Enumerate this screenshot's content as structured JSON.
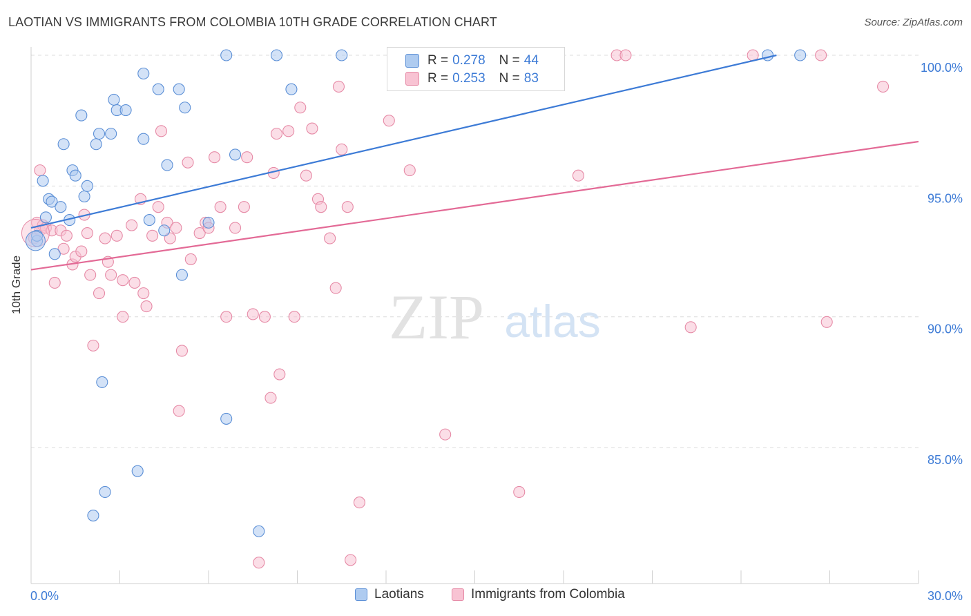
{
  "header": {
    "title": "LAOTIAN VS IMMIGRANTS FROM COLOMBIA 10TH GRADE CORRELATION CHART",
    "source": "Source: ZipAtlas.com"
  },
  "watermark": {
    "zip": "ZIP",
    "atlas": "atlas"
  },
  "legend": {
    "r_label": "R =",
    "n_label": "N =",
    "rows": [
      {
        "r": "0.278",
        "n": "44",
        "fill": "#aecbf0",
        "stroke": "#5b8fd6"
      },
      {
        "r": "0.253",
        "n": "83",
        "fill": "#f8c3d3",
        "stroke": "#e68aa6"
      }
    ]
  },
  "bottom_legend": [
    {
      "label": "Laotians",
      "fill": "#aecbf0",
      "stroke": "#5b8fd6"
    },
    {
      "label": "Immigrants from Colombia",
      "fill": "#f8c3d3",
      "stroke": "#e68aa6"
    }
  ],
  "chart_data": {
    "type": "scatter",
    "title": "LAOTIAN VS IMMIGRANTS FROM COLOMBIA 10TH GRADE CORRELATION CHART",
    "xlabel": "",
    "ylabel": "10th Grade",
    "xlim": [
      0,
      30
    ],
    "ylim": [
      80.2,
      100.4
    ],
    "x_tick_labels": [
      "0.0%",
      "30.0%"
    ],
    "y_ticks": [
      85,
      90,
      95,
      100
    ],
    "y_tick_labels": [
      "85.0%",
      "90.0%",
      "95.0%",
      "100.0%"
    ],
    "grid": "horizontal dashed",
    "legend_placement": "top-center",
    "accent_colors": {
      "blue": "#3d7bd6",
      "pink": "#e36a96",
      "axis_text": "#3d7bd6"
    },
    "series": [
      {
        "name": "Laotians",
        "color": "#5b8fd6",
        "fill": "#aecbf0",
        "r": 0.278,
        "n": 44,
        "trend": {
          "x": [
            0,
            25.2
          ],
          "y": [
            93.4,
            100.0
          ]
        },
        "points": [
          [
            0.2,
            92.9
          ],
          [
            0.2,
            93.1
          ],
          [
            0.4,
            95.2
          ],
          [
            0.5,
            93.8
          ],
          [
            0.6,
            94.5
          ],
          [
            0.7,
            94.4
          ],
          [
            0.8,
            92.4
          ],
          [
            1.0,
            94.2
          ],
          [
            1.1,
            96.6
          ],
          [
            1.3,
            93.7
          ],
          [
            1.4,
            95.6
          ],
          [
            1.5,
            95.4
          ],
          [
            1.7,
            97.7
          ],
          [
            1.8,
            94.6
          ],
          [
            1.9,
            95.0
          ],
          [
            2.2,
            96.6
          ],
          [
            2.3,
            97.0
          ],
          [
            2.4,
            87.5
          ],
          [
            2.5,
            83.3
          ],
          [
            2.7,
            97.0
          ],
          [
            2.8,
            98.3
          ],
          [
            2.9,
            97.9
          ],
          [
            3.2,
            97.9
          ],
          [
            3.6,
            84.1
          ],
          [
            3.8,
            96.8
          ],
          [
            3.8,
            99.3
          ],
          [
            4.0,
            93.7
          ],
          [
            4.3,
            98.7
          ],
          [
            4.5,
            93.3
          ],
          [
            4.6,
            95.8
          ],
          [
            5.0,
            98.7
          ],
          [
            5.1,
            91.6
          ],
          [
            5.2,
            98.0
          ],
          [
            6.0,
            93.6
          ],
          [
            6.6,
            86.1
          ],
          [
            6.6,
            100.0
          ],
          [
            6.9,
            96.2
          ],
          [
            7.7,
            81.8
          ],
          [
            8.3,
            100.0
          ],
          [
            8.8,
            98.7
          ],
          [
            10.5,
            100.0
          ],
          [
            24.9,
            100.0
          ],
          [
            26.0,
            100.0
          ],
          [
            2.1,
            82.4
          ]
        ]
      },
      {
        "name": "Immigrants from Colombia",
        "color": "#e68aa6",
        "fill": "#f8c3d3",
        "r": 0.253,
        "n": 83,
        "trend": {
          "x": [
            0,
            30
          ],
          "y": [
            91.8,
            96.7
          ]
        },
        "points": [
          [
            0.1,
            93.0
          ],
          [
            0.2,
            93.6
          ],
          [
            0.3,
            93.3
          ],
          [
            0.4,
            93.5
          ],
          [
            0.5,
            93.4
          ],
          [
            0.7,
            93.3
          ],
          [
            0.8,
            91.3
          ],
          [
            1.0,
            93.3
          ],
          [
            1.1,
            92.6
          ],
          [
            1.2,
            93.1
          ],
          [
            1.4,
            92.0
          ],
          [
            1.5,
            92.3
          ],
          [
            1.7,
            92.5
          ],
          [
            1.8,
            93.9
          ],
          [
            2.0,
            91.6
          ],
          [
            2.1,
            88.9
          ],
          [
            2.3,
            90.9
          ],
          [
            2.5,
            93.0
          ],
          [
            2.6,
            92.1
          ],
          [
            2.7,
            91.6
          ],
          [
            2.9,
            93.1
          ],
          [
            3.1,
            90.0
          ],
          [
            3.1,
            91.4
          ],
          [
            3.4,
            93.5
          ],
          [
            3.5,
            91.3
          ],
          [
            3.7,
            94.5
          ],
          [
            3.8,
            90.9
          ],
          [
            3.9,
            90.4
          ],
          [
            4.1,
            93.1
          ],
          [
            4.3,
            94.2
          ],
          [
            4.4,
            97.1
          ],
          [
            4.6,
            93.6
          ],
          [
            4.7,
            93.0
          ],
          [
            4.9,
            93.4
          ],
          [
            5.0,
            86.4
          ],
          [
            5.1,
            88.7
          ],
          [
            5.3,
            95.9
          ],
          [
            5.4,
            92.2
          ],
          [
            5.7,
            93.2
          ],
          [
            5.9,
            93.6
          ],
          [
            6.0,
            93.4
          ],
          [
            6.2,
            96.1
          ],
          [
            6.4,
            94.2
          ],
          [
            6.6,
            90.0
          ],
          [
            6.9,
            93.4
          ],
          [
            7.2,
            94.2
          ],
          [
            7.3,
            96.1
          ],
          [
            7.5,
            90.1
          ],
          [
            7.7,
            80.6
          ],
          [
            7.9,
            90.0
          ],
          [
            8.1,
            86.9
          ],
          [
            8.2,
            95.5
          ],
          [
            8.3,
            97.0
          ],
          [
            8.4,
            87.8
          ],
          [
            8.7,
            97.1
          ],
          [
            8.9,
            90.0
          ],
          [
            9.1,
            98.0
          ],
          [
            9.3,
            95.4
          ],
          [
            9.5,
            97.2
          ],
          [
            9.7,
            94.5
          ],
          [
            9.8,
            94.2
          ],
          [
            10.1,
            93.0
          ],
          [
            10.3,
            91.1
          ],
          [
            10.4,
            98.8
          ],
          [
            10.5,
            96.4
          ],
          [
            10.7,
            94.2
          ],
          [
            10.8,
            80.7
          ],
          [
            11.1,
            82.9
          ],
          [
            12.1,
            97.5
          ],
          [
            12.8,
            95.6
          ],
          [
            14.0,
            85.5
          ],
          [
            14.9,
            100.0
          ],
          [
            16.5,
            83.3
          ],
          [
            18.5,
            95.4
          ],
          [
            19.8,
            100.0
          ],
          [
            20.1,
            100.0
          ],
          [
            22.3,
            89.6
          ],
          [
            24.4,
            100.0
          ],
          [
            26.7,
            100.0
          ],
          [
            26.9,
            89.8
          ],
          [
            28.8,
            98.8
          ],
          [
            0.3,
            95.6
          ],
          [
            1.9,
            93.2
          ]
        ]
      }
    ]
  }
}
